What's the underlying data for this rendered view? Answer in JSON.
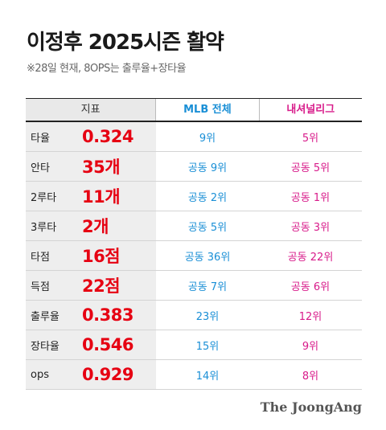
{
  "title": "이정후 2025시즌 활약",
  "subtitle": "※28일 현재, 8OPS는 출루율+장타율",
  "source": "The JoongAng",
  "colors": {
    "value": "#e60012",
    "mlb": "#1a8fd6",
    "nl": "#d81b8a"
  },
  "chart_data": {
    "type": "table",
    "columns": [
      "지표",
      "MLB 전체",
      "내셔널리그"
    ],
    "rows": [
      {
        "name": "타율",
        "value": "0.324",
        "mlb": "9위",
        "nl": "5위"
      },
      {
        "name": "안타",
        "value": "35개",
        "mlb": "공동 9위",
        "nl": "공동 5위"
      },
      {
        "name": "2루타",
        "value": "11개",
        "mlb": "공동 2위",
        "nl": "공동 1위"
      },
      {
        "name": "3루타",
        "value": "2개",
        "mlb": "공동 5위",
        "nl": "공동 3위"
      },
      {
        "name": "타점",
        "value": "16점",
        "mlb": "공동 36위",
        "nl": "공동 22위"
      },
      {
        "name": "득점",
        "value": "22점",
        "mlb": "공동 7위",
        "nl": "공동 6위"
      },
      {
        "name": "출루율",
        "value": "0.383",
        "mlb": "23위",
        "nl": "12위"
      },
      {
        "name": "장타율",
        "value": "0.546",
        "mlb": "15위",
        "nl": "9위"
      },
      {
        "name": "ops",
        "value": "0.929",
        "mlb": "14위",
        "nl": "8위"
      }
    ]
  }
}
